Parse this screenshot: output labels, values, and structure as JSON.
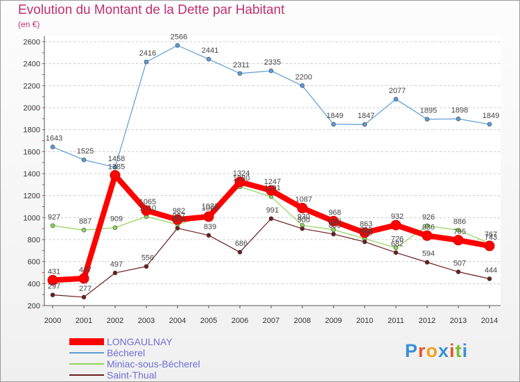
{
  "title": "Evolution du Montant de la Dette par Habitant",
  "subtitle": "(en €)",
  "logo": {
    "text": "Proxiti",
    "colors": [
      "#3a8fd9",
      "#e8552a",
      "#f2a01f",
      "#3a8fd9",
      "#e8552a",
      "#7cbf2e",
      "#3a8fd9"
    ]
  },
  "chart_data": {
    "type": "line",
    "x": [
      "2000",
      "2001",
      "2002",
      "2003",
      "2004",
      "2005",
      "2006",
      "2007",
      "2008",
      "2009",
      "2010",
      "2011",
      "2012",
      "2013",
      "2014"
    ],
    "ylim": [
      200,
      2600
    ],
    "yticks": [
      200,
      400,
      600,
      800,
      1000,
      1200,
      1400,
      1600,
      1800,
      2000,
      2200,
      2400,
      2600
    ],
    "grid": "horizontal dashed",
    "legend": "bottom-left",
    "series": [
      {
        "name": "LONGAULNAY",
        "color": "#ff0000",
        "values": [
          431,
          447,
          1385,
          1065,
          982,
          1009,
          1324,
          1247,
          1087,
          968,
          863,
          932,
          836,
          795,
          743
        ],
        "show_labels": true
      },
      {
        "name": "Bécherel",
        "color": "#5b9bd5",
        "values": [
          1643,
          1525,
          1458,
          2416,
          2566,
          2441,
          2311,
          2335,
          2200,
          1849,
          1847,
          2077,
          1895,
          1898,
          1849
        ],
        "show_labels": true
      },
      {
        "name": "Miniac-sous-Bécherel",
        "color": "#8ed45a",
        "values": [
          927,
          887,
          909,
          1010,
          937,
          1023,
          1280,
          1191,
          930,
          890,
          808,
          726,
          926,
          886,
          767
        ],
        "show_labels": true
      },
      {
        "name": "Saint-Thual",
        "color": "#6b1e1e",
        "values": [
          297,
          277,
          497,
          556,
          904,
          839,
          686,
          991,
          900,
          850,
          780,
          682,
          594,
          507,
          444
        ],
        "show_labels": true
      }
    ]
  }
}
